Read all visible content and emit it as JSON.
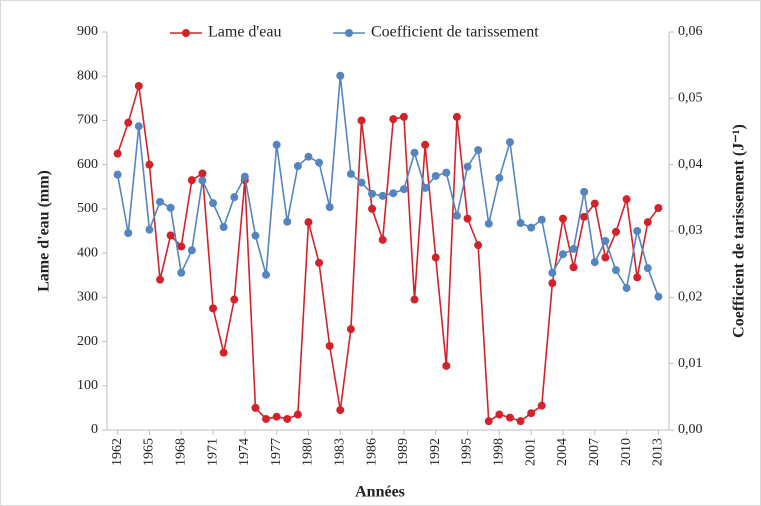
{
  "chart_data": {
    "type": "line",
    "legend": "top",
    "xlabel": "Années",
    "ylabel": "Lame d'eau (mm)",
    "y2label": "Coefficient de tarissement (J⁻¹)",
    "x": [
      1962,
      1963,
      1964,
      1965,
      1966,
      1967,
      1968,
      1969,
      1970,
      1971,
      1972,
      1973,
      1974,
      1975,
      1976,
      1977,
      1978,
      1979,
      1980,
      1981,
      1982,
      1983,
      1984,
      1985,
      1986,
      1987,
      1988,
      1989,
      1990,
      1991,
      1992,
      1993,
      1994,
      1995,
      1996,
      1997,
      1998,
      1999,
      2000,
      2001,
      2002,
      2003,
      2004,
      2005,
      2006,
      2007,
      2008,
      2009,
      2010,
      2011,
      2012,
      2013
    ],
    "xlim": [
      1961,
      2014
    ],
    "xticks": [
      1962,
      1965,
      1968,
      1971,
      1974,
      1977,
      1980,
      1983,
      1986,
      1989,
      1992,
      1995,
      1998,
      2001,
      2004,
      2007,
      2010,
      2013
    ],
    "ylim": [
      0,
      900
    ],
    "yticks": [
      0,
      100,
      200,
      300,
      400,
      500,
      600,
      700,
      800,
      900
    ],
    "y2lim": [
      0,
      0.06
    ],
    "y2ticks": [
      {
        "value": 0,
        "label": "0,00"
      },
      {
        "value": 0.01,
        "label": "0,01"
      },
      {
        "value": 0.02,
        "label": "0,02"
      },
      {
        "value": 0.03,
        "label": "0,03"
      },
      {
        "value": 0.04,
        "label": "0,04"
      },
      {
        "value": 0.05,
        "label": "0,05"
      },
      {
        "value": 0.06,
        "label": "0,06"
      }
    ],
    "series": [
      {
        "name": "Lame d'eau",
        "color": "#d2232a",
        "values": [
          625,
          695,
          778,
          600,
          340,
          440,
          415,
          565,
          580,
          275,
          175,
          295,
          565,
          50,
          25,
          30,
          25,
          35,
          470,
          378,
          190,
          45,
          228,
          700,
          500,
          430,
          703,
          708,
          295,
          645,
          390,
          145,
          708,
          478,
          418,
          20,
          35,
          28,
          20,
          38,
          55,
          332,
          478,
          368,
          482,
          512,
          390,
          448,
          522,
          345,
          470,
          502
        ]
      },
      {
        "name": "Coefficient de tarissement",
        "color": "#5585c0",
        "axis": "y2",
        "values": [
          0.0385,
          0.0297,
          0.0458,
          0.0302,
          0.0344,
          0.0335,
          0.0237,
          0.0271,
          0.0376,
          0.0342,
          0.0306,
          0.0351,
          0.0382,
          0.0293,
          0.0234,
          0.043,
          0.0314,
          0.0398,
          0.0412,
          0.0403,
          0.0336,
          0.0534,
          0.0386,
          0.0373,
          0.0356,
          0.0353,
          0.0357,
          0.0363,
          0.0418,
          0.0365,
          0.0383,
          0.0388,
          0.0323,
          0.0397,
          0.0422,
          0.0311,
          0.038,
          0.0434,
          0.0312,
          0.0305,
          0.0317,
          0.0237,
          0.0265,
          0.0273,
          0.0359,
          0.0253,
          0.0285,
          0.0241,
          0.0214,
          0.03,
          0.0244,
          0.0201
        ]
      }
    ]
  }
}
